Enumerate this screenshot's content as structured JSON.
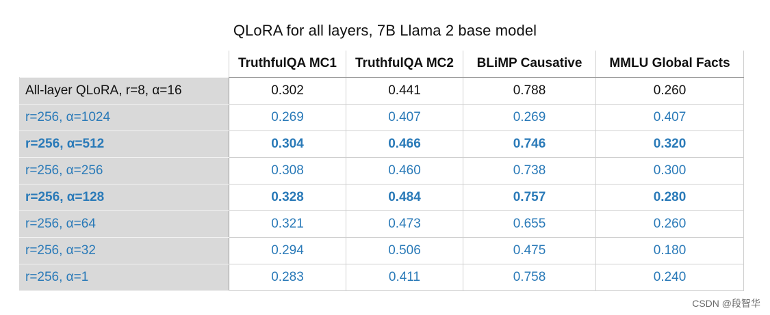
{
  "title": "QLoRA for all layers, 7B Llama 2 base model",
  "columns": [
    "TruthfulQA MC1",
    "TruthfulQA MC2",
    "BLiMP Causative",
    "MMLU Global Facts"
  ],
  "rows": [
    {
      "label": "All-layer QLoRA, r=8, α=16",
      "values": [
        "0.302",
        "0.441",
        "0.788",
        "0.260"
      ],
      "style": "baseline"
    },
    {
      "label": "r=256, α=1024",
      "values": [
        "0.269",
        "0.407",
        "0.269",
        "0.407"
      ],
      "style": "normal"
    },
    {
      "label": "r=256, α=512",
      "values": [
        "0.304",
        "0.466",
        "0.746",
        "0.320"
      ],
      "style": "bold"
    },
    {
      "label": "r=256, α=256",
      "values": [
        "0.308",
        "0.460",
        "0.738",
        "0.300"
      ],
      "style": "normal"
    },
    {
      "label": "r=256, α=128",
      "values": [
        "0.328",
        "0.484",
        "0.757",
        "0.280"
      ],
      "style": "bold"
    },
    {
      "label": "r=256, α=64",
      "values": [
        "0.321",
        "0.473",
        "0.655",
        "0.260"
      ],
      "style": "normal"
    },
    {
      "label": "r=256, α=32",
      "values": [
        "0.294",
        "0.506",
        "0.475",
        "0.180"
      ],
      "style": "normal"
    },
    {
      "label": "r=256, α=1",
      "values": [
        "0.283",
        "0.411",
        "0.758",
        "0.240"
      ],
      "style": "normal"
    }
  ],
  "colors": {
    "highlight_text": "#2a7ab8",
    "label_background": "#d9d9d9",
    "baseline_text": "#111111"
  },
  "watermark": "CSDN @段智华"
}
